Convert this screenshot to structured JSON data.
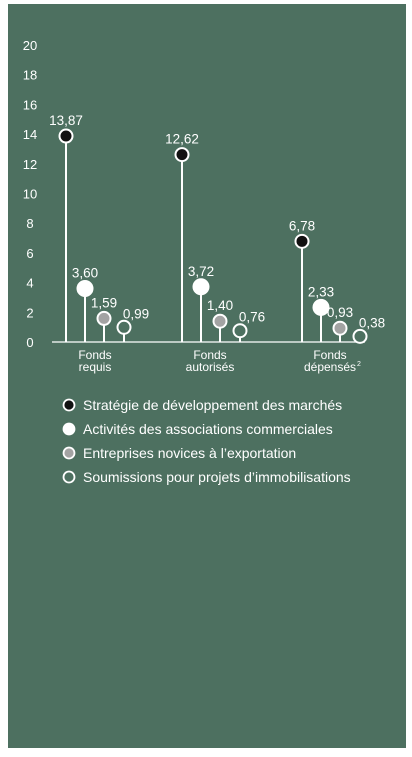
{
  "chart_data": {
    "type": "lollipop",
    "ylim": [
      0,
      20
    ],
    "yticks": [
      "0",
      "2",
      "4",
      "6",
      "8",
      "10",
      "12",
      "14",
      "16",
      "18",
      "20"
    ],
    "categories": [
      [
        "Fonds",
        "requis"
      ],
      [
        "Fonds",
        "autorisés"
      ],
      [
        "Fonds",
        "dépensés"
      ]
    ],
    "category_superscripts": [
      "",
      "",
      "2"
    ],
    "series": [
      {
        "name": "Stratégie de développement des marchés",
        "values": [
          13.87,
          12.62,
          6.78
        ],
        "labels": [
          "13,87",
          "12,62",
          "6,78"
        ],
        "fill": "#111111",
        "stroke": "#ffffff"
      },
      {
        "name": "Activités des associations commerciales",
        "values": [
          3.6,
          3.72,
          2.33
        ],
        "labels": [
          "3,60",
          "3,72",
          "2,33"
        ],
        "fill": "#ffffff",
        "stroke": "#ffffff"
      },
      {
        "name": "Entreprises novices à l’exportation",
        "values": [
          1.59,
          1.4,
          0.93
        ],
        "labels": [
          "1,59",
          "1,40",
          "0,93"
        ],
        "fill": "#a3a3a3",
        "stroke": "#ffffff"
      },
      {
        "name": "Soumissions pour projets d’immobilisations",
        "values": [
          0.99,
          0.76,
          0.38
        ],
        "labels": [
          "0,99",
          "0,76",
          "0,38"
        ],
        "fill": "#4d7060",
        "stroke": "#ffffff"
      }
    ],
    "grid": false,
    "legend": "bottom"
  }
}
